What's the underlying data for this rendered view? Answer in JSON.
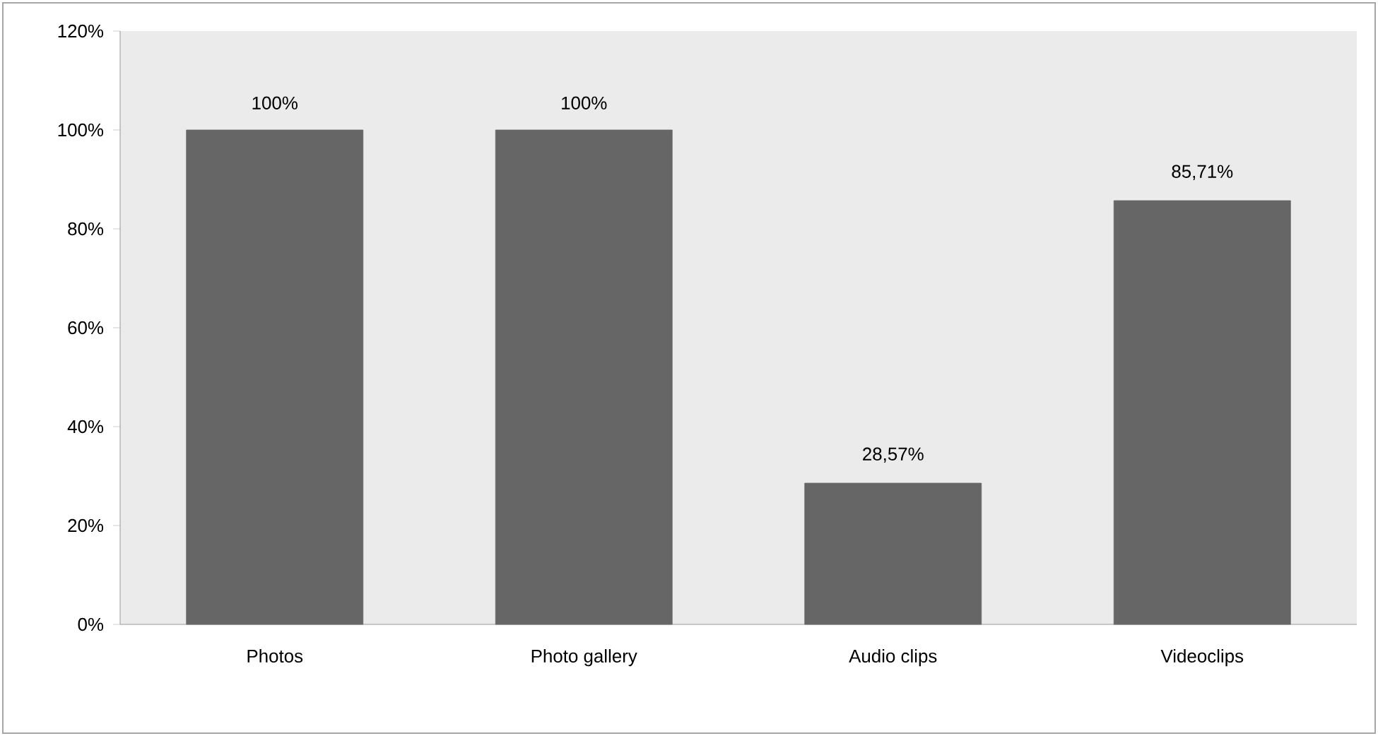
{
  "chart_data": {
    "type": "bar",
    "categories": [
      "Photos",
      "Photo gallery",
      "Audio clips",
      "Videoclips"
    ],
    "values": [
      100,
      100,
      28.57,
      85.71
    ],
    "value_labels": [
      "100%",
      "100%",
      "28,57%",
      "85,71%"
    ],
    "color": "#666666",
    "ylim": [
      0,
      120
    ],
    "yticks": [
      {
        "value": 0,
        "label": "0%"
      },
      {
        "value": 20,
        "label": "20%"
      },
      {
        "value": 40,
        "label": "40%"
      },
      {
        "value": 60,
        "label": "60%"
      },
      {
        "value": 80,
        "label": "80%"
      },
      {
        "value": 100,
        "label": "100%"
      },
      {
        "value": 120,
        "label": "120%"
      }
    ],
    "grid": false
  }
}
